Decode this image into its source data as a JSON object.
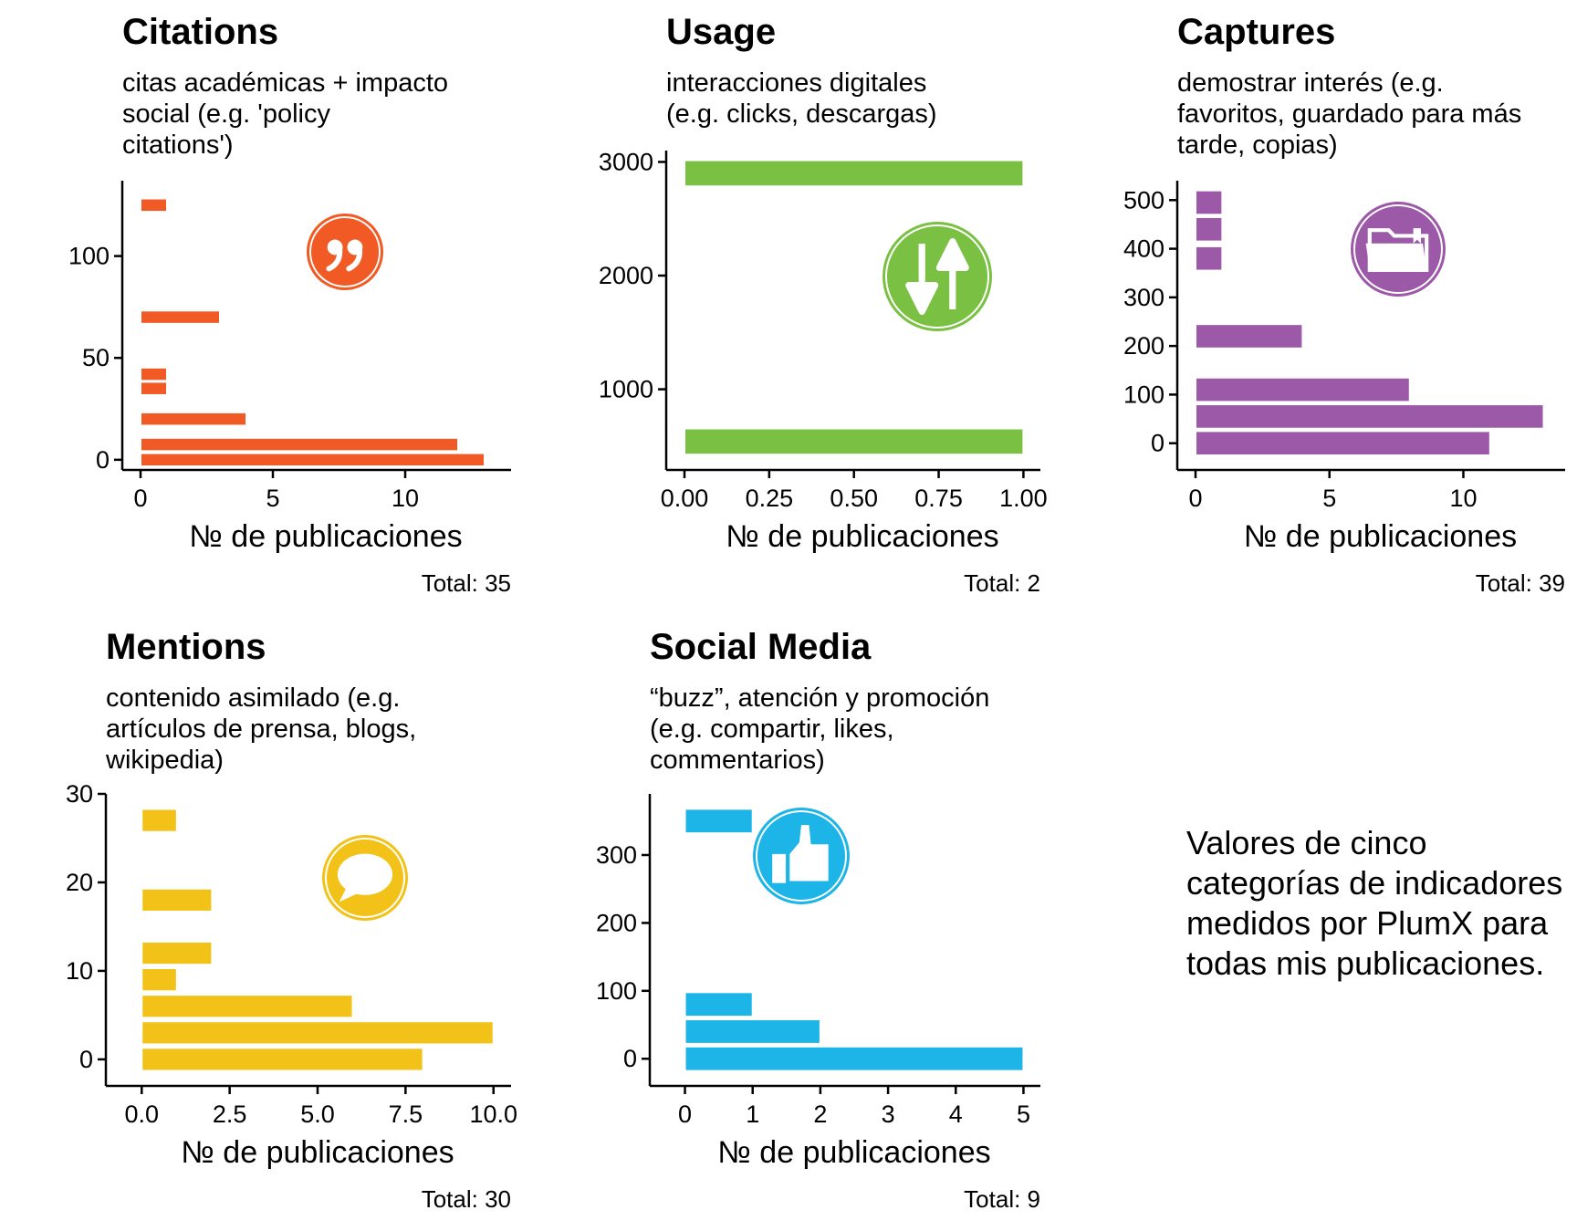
{
  "chart_data": [
    {
      "type": "bar",
      "orientation": "horizontal",
      "title": "Citations",
      "subtitle": [
        "citas académicas + impacto",
        "social (e.g. 'policy",
        "citations')"
      ],
      "xlabel": "№ de publicaciones",
      "ylabel": "",
      "total": "Total: 35",
      "xlim": [
        0,
        14
      ],
      "ylim": [
        -5,
        137
      ],
      "xticks": [
        0,
        5,
        10
      ],
      "xtick_labels": [
        "0",
        "5",
        "10"
      ],
      "yticks": [
        0,
        50,
        100
      ],
      "ytick_labels": [
        "0",
        "50",
        "100"
      ],
      "bin_width": 6.5,
      "bins": [
        {
          "y": 0,
          "count": 13
        },
        {
          "y": 7.5,
          "count": 12
        },
        {
          "y": 20,
          "count": 4
        },
        {
          "y": 35,
          "count": 1
        },
        {
          "y": 42,
          "count": 1
        },
        {
          "y": 70,
          "count": 3
        },
        {
          "y": 125,
          "count": 1
        }
      ],
      "color": "#F15A24",
      "icon": "quote-icon"
    },
    {
      "type": "bar",
      "orientation": "horizontal",
      "title": "Usage",
      "subtitle": [
        "interacciones digitales",
        "(e.g. clicks, descargas)"
      ],
      "xlabel": "№ de publicaciones",
      "ylabel": "",
      "total": "Total: 2",
      "xlim": [
        0,
        1.05
      ],
      "ylim": [
        290,
        3100
      ],
      "xticks": [
        0,
        0.25,
        0.5,
        0.75,
        1
      ],
      "xtick_labels": [
        "0.00",
        "0.25",
        "0.50",
        "0.75",
        "1.00"
      ],
      "yticks": [
        1000,
        2000,
        3000
      ],
      "ytick_labels": [
        "1000",
        "2000",
        "3000"
      ],
      "bin_width": 230,
      "bins": [
        {
          "y": 540,
          "count": 1
        },
        {
          "y": 2900,
          "count": 1
        }
      ],
      "color": "#7AC143",
      "icon": "up-down-arrows-icon"
    },
    {
      "type": "bar",
      "orientation": "horizontal",
      "title": "Captures",
      "subtitle": [
        "demostrar interés (e.g.",
        "favoritos, guardado para más",
        "tarde, copias)"
      ],
      "xlabel": "№ de publicaciones",
      "ylabel": "",
      "total": "Total: 39",
      "xlim": [
        0,
        13.8
      ],
      "ylim": [
        -55,
        540
      ],
      "xticks": [
        0,
        5,
        10
      ],
      "xtick_labels": [
        "0",
        "5",
        "10"
      ],
      "yticks": [
        0,
        100,
        200,
        300,
        400,
        500
      ],
      "ytick_labels": [
        "0",
        "100",
        "200",
        "300",
        "400",
        "500"
      ],
      "bin_width": 50,
      "bins": [
        {
          "y": 0,
          "count": 11
        },
        {
          "y": 55,
          "count": 13
        },
        {
          "y": 110,
          "count": 8
        },
        {
          "y": 220,
          "count": 4
        },
        {
          "y": 380,
          "count": 1
        },
        {
          "y": 440,
          "count": 1
        },
        {
          "y": 495,
          "count": 1
        }
      ],
      "color": "#9B59A8",
      "icon": "folder-icon"
    },
    {
      "type": "bar",
      "orientation": "horizontal",
      "title": "Mentions",
      "subtitle": [
        "contenido asimilado (e.g.",
        "artículos de prensa, blogs,",
        "wikipedia)"
      ],
      "xlabel": "№ de publicaciones",
      "ylabel": "",
      "total": "Total: 30",
      "xlim": [
        -0.5,
        10.5
      ],
      "ylim": [
        -3,
        30
      ],
      "xticks": [
        0,
        2.5,
        5,
        7.5,
        10
      ],
      "xtick_labels": [
        "0.0",
        "2.5",
        "5.0",
        "7.5",
        "10.0"
      ],
      "yticks": [
        0,
        10,
        20,
        30
      ],
      "ytick_labels": [
        "0",
        "10",
        "20",
        "30"
      ],
      "bin_width": 2.6,
      "bins": [
        {
          "y": 0,
          "count": 8
        },
        {
          "y": 3,
          "count": 10
        },
        {
          "y": 6,
          "count": 6
        },
        {
          "y": 9,
          "count": 1
        },
        {
          "y": 12,
          "count": 2
        },
        {
          "y": 18,
          "count": 2
        },
        {
          "y": 27,
          "count": 1
        }
      ],
      "color": "#F2C218",
      "icon": "speech-bubble-icon"
    },
    {
      "type": "bar",
      "orientation": "horizontal",
      "title": "Social Media",
      "subtitle": [
        "“buzz”, atención y promoción",
        "(e.g. compartir, likes,",
        "commentarios)"
      ],
      "xlabel": "№ de publicaciones",
      "ylabel": "",
      "total": "Total: 9",
      "xlim": [
        -0.25,
        5.25
      ],
      "ylim": [
        -40,
        390
      ],
      "xticks": [
        0,
        1,
        2,
        3,
        4,
        5
      ],
      "xtick_labels": [
        "0",
        "1",
        "2",
        "3",
        "4",
        "5"
      ],
      "yticks": [
        0,
        100,
        200,
        300
      ],
      "ytick_labels": [
        "0",
        "100",
        "200",
        "300"
      ],
      "bin_width": 36,
      "bins": [
        {
          "y": 0,
          "count": 5
        },
        {
          "y": 40,
          "count": 2
        },
        {
          "y": 80,
          "count": 1
        },
        {
          "y": 350,
          "count": 1
        }
      ],
      "color": "#1DB4E8",
      "icon": "thumbs-up-icon"
    }
  ],
  "note": "Valores de cinco categorías de indicadores medidos por PlumX para todas mis publicaciones."
}
